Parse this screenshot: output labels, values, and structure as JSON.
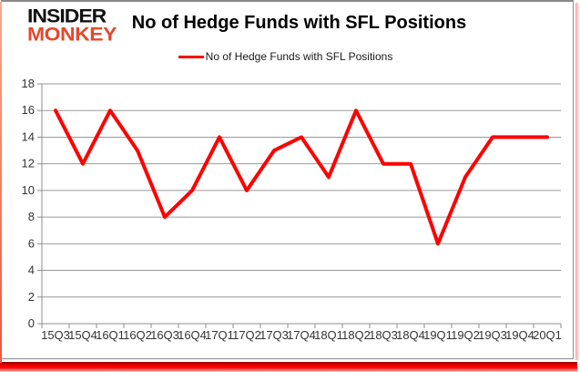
{
  "logo": {
    "line1": "INSIDER",
    "line2": "MONKEY"
  },
  "header": {
    "title": "No of Hedge Funds with SFL Positions"
  },
  "legend": {
    "label": "No of Hedge Funds with SFL Positions"
  },
  "colors": {
    "series": "#FF0000",
    "logo_accent": "#E2492D",
    "gridline": "#999999",
    "axis_line": "#8c8c8c",
    "axis_text": "#333333",
    "frame_border": "#8A8A8A",
    "glow": "#FF0000"
  },
  "chart_data": {
    "type": "line",
    "title": "No of Hedge Funds with SFL Positions",
    "categories": [
      "15Q3",
      "15Q4",
      "16Q1",
      "16Q2",
      "16Q3",
      "16Q4",
      "17Q1",
      "17Q2",
      "17Q3",
      "17Q4",
      "18Q1",
      "18Q2",
      "18Q3",
      "18Q4",
      "19Q1",
      "19Q2",
      "19Q3",
      "19Q4",
      "20Q1"
    ],
    "series": [
      {
        "name": "No of Hedge Funds with SFL Positions",
        "color": "#FF0000",
        "values": [
          16,
          12,
          16,
          13,
          8,
          10,
          14,
          10,
          13,
          14,
          11,
          16,
          12,
          12,
          6,
          11,
          14,
          14,
          14
        ]
      }
    ],
    "xlabel": "",
    "ylabel": "",
    "ylim": [
      0,
      18
    ],
    "yticks": [
      0,
      2,
      4,
      6,
      8,
      10,
      12,
      14,
      16,
      18
    ],
    "grid": true,
    "legend_position": "top"
  }
}
